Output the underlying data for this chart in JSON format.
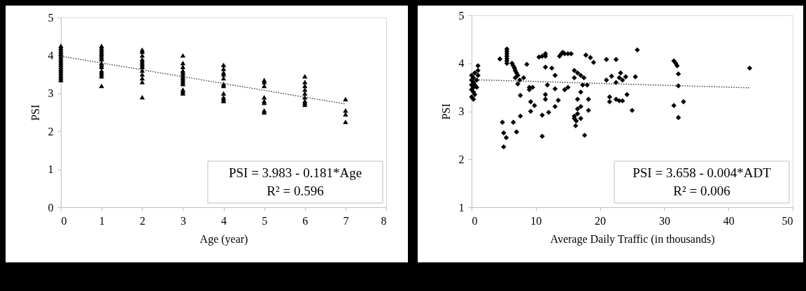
{
  "chart_data": [
    {
      "type": "scatter",
      "xlabel": "Age (year)",
      "ylabel": "PSI",
      "xlim": [
        0,
        8
      ],
      "ylim": [
        0,
        5
      ],
      "xticks": [
        0,
        1,
        2,
        3,
        4,
        5,
        6,
        7,
        8
      ],
      "yticks": [
        0,
        1,
        2,
        3,
        4,
        5
      ],
      "grid": false,
      "annotations": [
        "PSI = 3.983 - 0.181*Age",
        "R² = 0.596"
      ],
      "series": [
        {
          "type": "scatter",
          "color": "#000000",
          "marker": "triangle",
          "x": [
            0,
            0,
            0,
            0,
            0,
            0,
            0,
            0,
            0,
            0,
            0,
            0,
            0,
            0,
            0,
            0,
            0,
            0,
            0,
            1,
            1,
            1,
            1,
            1,
            1,
            1,
            1,
            1,
            1,
            1,
            1,
            1,
            1,
            1,
            1,
            2,
            2,
            2,
            2,
            2,
            2,
            2,
            2,
            2,
            2,
            2,
            2,
            2,
            3,
            3,
            3,
            3,
            3,
            3,
            3,
            3,
            3,
            3,
            3,
            3,
            3,
            3,
            4,
            4,
            4,
            4,
            4,
            4,
            4,
            4,
            4,
            4,
            4,
            5,
            5,
            5,
            5,
            5,
            5,
            5,
            5,
            6,
            6,
            6,
            6,
            6,
            6,
            6,
            6,
            6,
            7,
            7,
            7,
            7
          ],
          "values": [
            3.35,
            3.4,
            3.45,
            3.5,
            3.55,
            3.6,
            3.65,
            3.7,
            3.75,
            3.8,
            3.85,
            3.9,
            3.95,
            4.0,
            4.05,
            4.1,
            4.15,
            4.2,
            4.25,
            3.2,
            3.45,
            3.5,
            3.55,
            3.6,
            3.7,
            3.75,
            3.8,
            3.9,
            3.95,
            4.0,
            4.05,
            4.1,
            4.15,
            4.2,
            4.25,
            2.9,
            3.3,
            3.4,
            3.5,
            3.6,
            3.7,
            3.75,
            3.8,
            3.85,
            3.9,
            4.0,
            4.1,
            4.15,
            3.0,
            3.05,
            3.1,
            3.25,
            3.3,
            3.35,
            3.4,
            3.45,
            3.5,
            3.55,
            3.6,
            3.7,
            3.8,
            4.0,
            2.8,
            2.85,
            2.9,
            3.0,
            3.2,
            3.25,
            3.4,
            3.5,
            3.55,
            3.65,
            3.75,
            2.5,
            2.55,
            2.75,
            2.8,
            2.9,
            3.2,
            3.3,
            3.35,
            2.7,
            2.75,
            2.8,
            2.9,
            3.0,
            3.1,
            3.2,
            3.3,
            3.45,
            2.25,
            2.45,
            2.55,
            2.85
          ]
        },
        {
          "type": "line",
          "color": "#404040",
          "line_style": "dotted",
          "marker": "none",
          "x": [
            0,
            7
          ],
          "values": [
            3.98,
            2.72
          ]
        }
      ]
    },
    {
      "type": "scatter",
      "xlabel": "Average Daily Traffic (in thousands)",
      "ylabel": "PSI",
      "xlim": [
        0,
        50
      ],
      "ylim": [
        1,
        5
      ],
      "xticks": [
        0,
        10,
        20,
        30,
        40,
        50
      ],
      "yticks": [
        1,
        2,
        3,
        4,
        5
      ],
      "grid": false,
      "annotations": [
        "PSI = 3.658 - 0.004*ADT",
        "R² = 0.006"
      ],
      "series": [
        {
          "type": "scatter",
          "color": "#000000",
          "marker": "diamond",
          "x": [
            0,
            0,
            0,
            0,
            0,
            0.3,
            0.3,
            0.3,
            0.3,
            0.3,
            0.5,
            0.5,
            0.5,
            0.8,
            0.8,
            1,
            1,
            1,
            4.4,
            4.8,
            5,
            5.4,
            5,
            5.5,
            5.5,
            5.5,
            5.5,
            5.5,
            5.5,
            5.5,
            6.3,
            6.5,
            6.7,
            6.8,
            7,
            7.2,
            6.8,
            7.5,
            6.5,
            7,
            7.6,
            7.6,
            7.2,
            8.1,
            8.6,
            9,
            9,
            9.5,
            9.2,
            9.2,
            9.8,
            10.5,
            11,
            11.5,
            11.5,
            11.5,
            11.8,
            11.5,
            11.5,
            11,
            11,
            12,
            12.5,
            13,
            13,
            13,
            13.5,
            14,
            13.7,
            14.5,
            15,
            15.5,
            14.2,
            15,
            14.5,
            16,
            16.5,
            17,
            17.5,
            16,
            17.3,
            17,
            16.5,
            17,
            16.5,
            16,
            16,
            16.5,
            16.3,
            16.2,
            17,
            17.6,
            18,
            18.2,
            18.2,
            17.8,
            18.5,
            19,
            21,
            21,
            21.8,
            21.5,
            21.5,
            22.5,
            22.5,
            23,
            23.5,
            22.5,
            23,
            23.2,
            23.5,
            24,
            24.2,
            25.5,
            25,
            25.8,
            31.5,
            31.8,
            32,
            32.2,
            32.2,
            31.5,
            32.2,
            33,
            43.3
          ],
          "values": [
            3.3,
            3.45,
            3.55,
            3.65,
            3.75,
            3.25,
            3.4,
            3.5,
            3.6,
            3.7,
            3.35,
            3.55,
            3.8,
            3.5,
            3.65,
            3.85,
            3.95,
            3.75,
            4.09,
            2.77,
            2.55,
            2.45,
            2.26,
            4.3,
            4.25,
            4.2,
            4.15,
            4.1,
            4.05,
            4.0,
            4.0,
            3.95,
            3.9,
            3.85,
            3.8,
            3.75,
            3.7,
            3.65,
            2.77,
            2.57,
            2.9,
            3.33,
            3.57,
            3.7,
            3.98,
            3.5,
            3.45,
            3.5,
            3.2,
            3.0,
            3.12,
            4.13,
            4.15,
            4.2,
            4.15,
            3.92,
            3.55,
            3.35,
            3.25,
            2.92,
            2.48,
            2.98,
            3.9,
            3.75,
            3.47,
            3.1,
            3.23,
            4.2,
            4.15,
            4.2,
            4.2,
            4.2,
            4.23,
            3.5,
            3.45,
            3.85,
            3.8,
            3.75,
            3.7,
            3.7,
            3.55,
            3.4,
            3.25,
            3.1,
            3.05,
            2.9,
            2.85,
            2.95,
            2.8,
            2.7,
            2.85,
            2.5,
            3.55,
            3.25,
            3.02,
            4.17,
            4.12,
            4.02,
            4.08,
            3.65,
            3.73,
            3.3,
            3.2,
            4.08,
            3.25,
            3.22,
            3.22,
            3.6,
            3.7,
            3.8,
            3.65,
            3.72,
            3.35,
            3.72,
            3.02,
            4.28,
            4.05,
            4.0,
            3.95,
            3.78,
            3.53,
            3.12,
            2.87,
            3.2,
            3.9
          ]
        },
        {
          "type": "line",
          "color": "#404040",
          "line_style": "dotted",
          "marker": "none",
          "x": [
            0,
            43.3
          ],
          "values": [
            3.66,
            3.49
          ]
        }
      ]
    }
  ]
}
